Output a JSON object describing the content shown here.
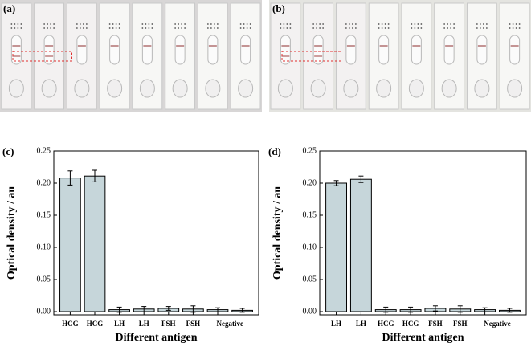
{
  "photos": [
    {
      "label": "(a)"
    },
    {
      "label": "(b)"
    }
  ],
  "chart_data": [
    {
      "type": "bar",
      "panel": "(c)",
      "x_label": "Different antigen",
      "y_label": "Optical density / au",
      "categories": [
        "HCG",
        "HCG",
        "LH",
        "LH",
        "FSH",
        "FSH",
        "Negative",
        null
      ],
      "values": [
        0.208,
        0.211,
        0.003,
        0.004,
        0.005,
        0.004,
        0.003,
        0.002
      ],
      "errors": [
        0.011,
        0.009,
        0.004,
        0.004,
        0.003,
        0.005,
        0.003,
        0.003
      ],
      "color": "#c6d6da",
      "ylim": [
        -0.005,
        0.25
      ],
      "yticks": [
        {
          "value": 0,
          "label": "0.00"
        },
        {
          "value": 0.05,
          "label": "0.05"
        },
        {
          "value": 0.1,
          "label": "0.10"
        },
        {
          "value": 0.15,
          "label": "0.15"
        },
        {
          "value": 0.2,
          "label": "0.20"
        },
        {
          "value": 0.25,
          "label": "0.25"
        }
      ]
    },
    {
      "type": "bar",
      "panel": "(d)",
      "x_label": "Different antigen",
      "y_label": "Optical density / au",
      "categories": [
        "LH",
        "LH",
        "HCG",
        "HCG",
        "FSH",
        "FSH",
        "Negative",
        null
      ],
      "values": [
        0.2,
        0.206,
        0.003,
        0.003,
        0.005,
        0.004,
        0.003,
        0.002
      ],
      "errors": [
        0.004,
        0.005,
        0.004,
        0.004,
        0.004,
        0.005,
        0.003,
        0.003
      ],
      "color": "#c6d6da",
      "ylim": [
        -0.005,
        0.25
      ],
      "yticks": [
        {
          "value": 0,
          "label": "0.00"
        },
        {
          "value": 0.05,
          "label": "0.05"
        },
        {
          "value": 0.1,
          "label": "0.10"
        },
        {
          "value": 0.15,
          "label": "0.15"
        },
        {
          "value": 0.2,
          "label": "0.20"
        },
        {
          "value": 0.25,
          "label": "0.25"
        }
      ]
    }
  ]
}
